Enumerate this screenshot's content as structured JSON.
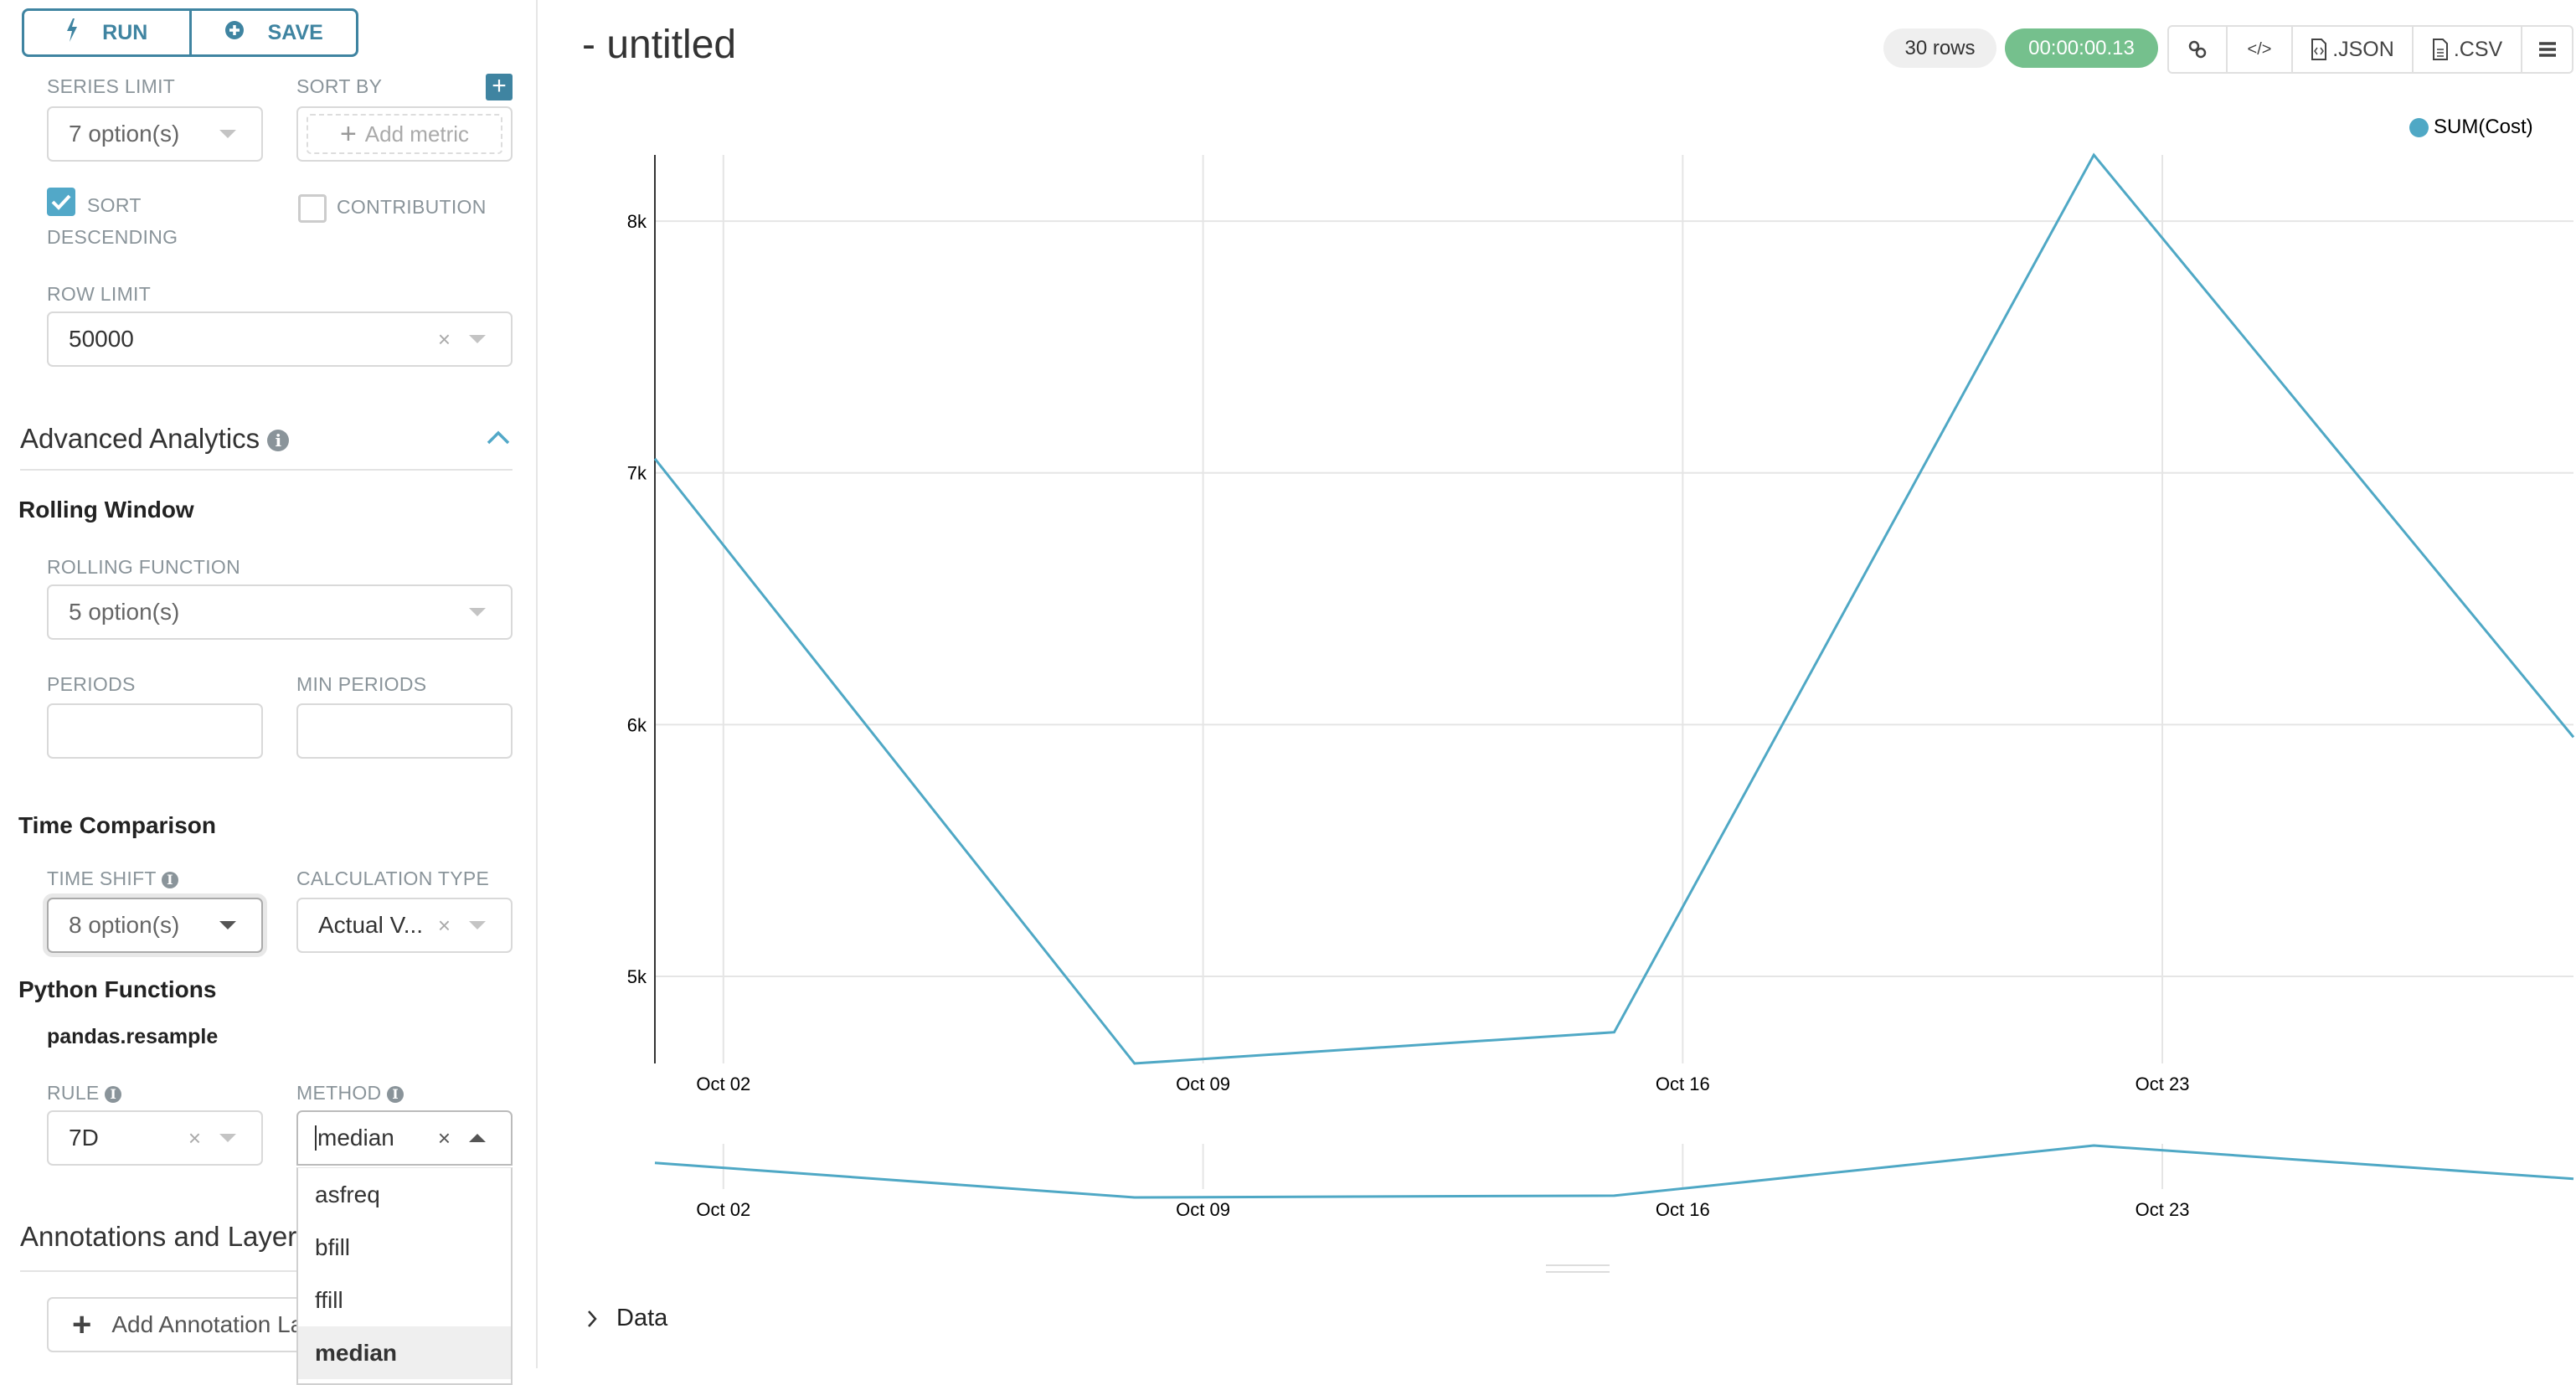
{
  "toolbar": {
    "run": "RUN",
    "save": "SAVE"
  },
  "sidebar": {
    "series_limit": {
      "label": "SERIES LIMIT",
      "value": "7 option(s)"
    },
    "sort_by": {
      "label": "SORT BY",
      "placeholder": "Add metric"
    },
    "sort_descending": {
      "label": "SORT DESCENDING",
      "checked": true
    },
    "contribution": {
      "label": "CONTRIBUTION",
      "checked": false
    },
    "row_limit": {
      "label": "ROW LIMIT",
      "value": "50000"
    },
    "advanced_analytics": {
      "title": "Advanced Analytics",
      "expanded": true
    },
    "rolling_window": {
      "title": "Rolling Window",
      "rolling_function": {
        "label": "ROLLING FUNCTION",
        "value": "5 option(s)"
      },
      "periods": {
        "label": "PERIODS",
        "value": ""
      },
      "min_periods": {
        "label": "MIN PERIODS",
        "value": ""
      }
    },
    "time_comparison": {
      "title": "Time Comparison",
      "time_shift": {
        "label": "TIME SHIFT",
        "value": "8 option(s)"
      },
      "calculation_type": {
        "label": "CALCULATION TYPE",
        "value": "Actual V..."
      }
    },
    "python_functions": {
      "title": "Python Functions",
      "subtitle": "pandas.resample",
      "rule": {
        "label": "RULE",
        "value": "7D"
      },
      "method": {
        "label": "METHOD",
        "value": "median",
        "options": [
          "asfreq",
          "bfill",
          "ffill",
          "median"
        ],
        "highlighted": "median"
      }
    },
    "annotations": {
      "title": "Annotations and Layers",
      "add_button": "Add Annotation Layer"
    }
  },
  "header": {
    "title": "- untitled",
    "row_count": "30 rows",
    "duration": "00:00:00.13",
    "duration_color": "#75c08d",
    "json_label": ".JSON",
    "csv_label": ".CSV"
  },
  "chart_data": {
    "type": "line",
    "x": [
      "Oct 01",
      "Oct 08",
      "Oct 15",
      "Oct 22",
      "Oct 29"
    ],
    "series": [
      {
        "name": "SUM(Cost)",
        "values": [
          7056,
          4654,
          4778,
          8263,
          5950
        ],
        "color": "#4fa8c5"
      }
    ],
    "x_ticks": [
      "Oct 02",
      "Oct 09",
      "Oct 16",
      "Oct 23"
    ],
    "y_ticks": [
      {
        "value": 5000,
        "label": "5k"
      },
      {
        "value": 6000,
        "label": "6k"
      },
      {
        "value": 7000,
        "label": "7k"
      },
      {
        "value": 8000,
        "label": "8k"
      }
    ],
    "xlim": [
      "Oct 01",
      "Oct 29"
    ],
    "ylim": [
      4654,
      8263
    ],
    "grid": true,
    "legend": "top-right",
    "has_range_brush": true
  },
  "data_section": {
    "label": "Data",
    "expanded": false
  }
}
